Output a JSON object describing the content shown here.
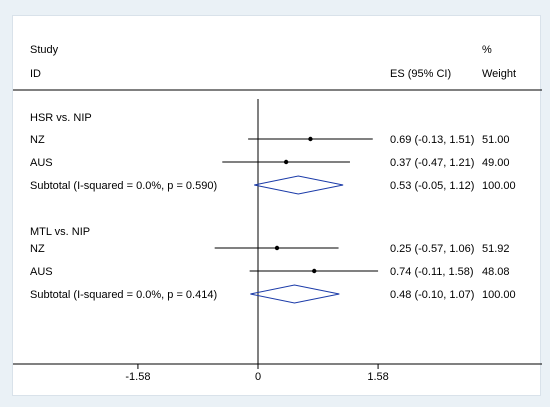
{
  "headers": {
    "study_line1": "Study",
    "study_line2": "ID",
    "es": "ES (95% CI)",
    "weight_line1": "%",
    "weight_line2": "Weight"
  },
  "chart_data": {
    "type": "forest",
    "x_ticks": [
      -1.58,
      0,
      1.58
    ],
    "x_tick_labels": [
      "-1.58",
      "0",
      "1.58"
    ],
    "xlim": [
      -1.58,
      1.58
    ],
    "null_line": 0,
    "groups": [
      {
        "label": "HSR vs. NIP",
        "studies": [
          {
            "name": "NZ",
            "es": 0.69,
            "lo": -0.13,
            "hi": 1.51,
            "ci_text": "0.69 (-0.13, 1.51)",
            "weight": "51.00"
          },
          {
            "name": "AUS",
            "es": 0.37,
            "lo": -0.47,
            "hi": 1.21,
            "ci_text": "0.37 (-0.47, 1.21)",
            "weight": "49.00"
          }
        ],
        "subtotal": {
          "label": "Subtotal  (I-squared = 0.0%, p = 0.590)",
          "es": 0.53,
          "lo": -0.05,
          "hi": 1.12,
          "ci_text": "0.53 (-0.05, 1.12)",
          "weight": "100.00"
        }
      },
      {
        "label": "MTL vs. NIP",
        "studies": [
          {
            "name": "NZ",
            "es": 0.25,
            "lo": -0.57,
            "hi": 1.06,
            "ci_text": "0.25 (-0.57, 1.06)",
            "weight": "51.92"
          },
          {
            "name": "AUS",
            "es": 0.74,
            "lo": -0.11,
            "hi": 1.58,
            "ci_text": "0.74 (-0.11, 1.58)",
            "weight": "48.08"
          }
        ],
        "subtotal": {
          "label": "Subtotal  (I-squared = 0.0%, p = 0.414)",
          "es": 0.48,
          "lo": -0.1,
          "hi": 1.07,
          "ci_text": "0.48 (-0.10, 1.07)",
          "weight": "100.00"
        }
      }
    ]
  }
}
